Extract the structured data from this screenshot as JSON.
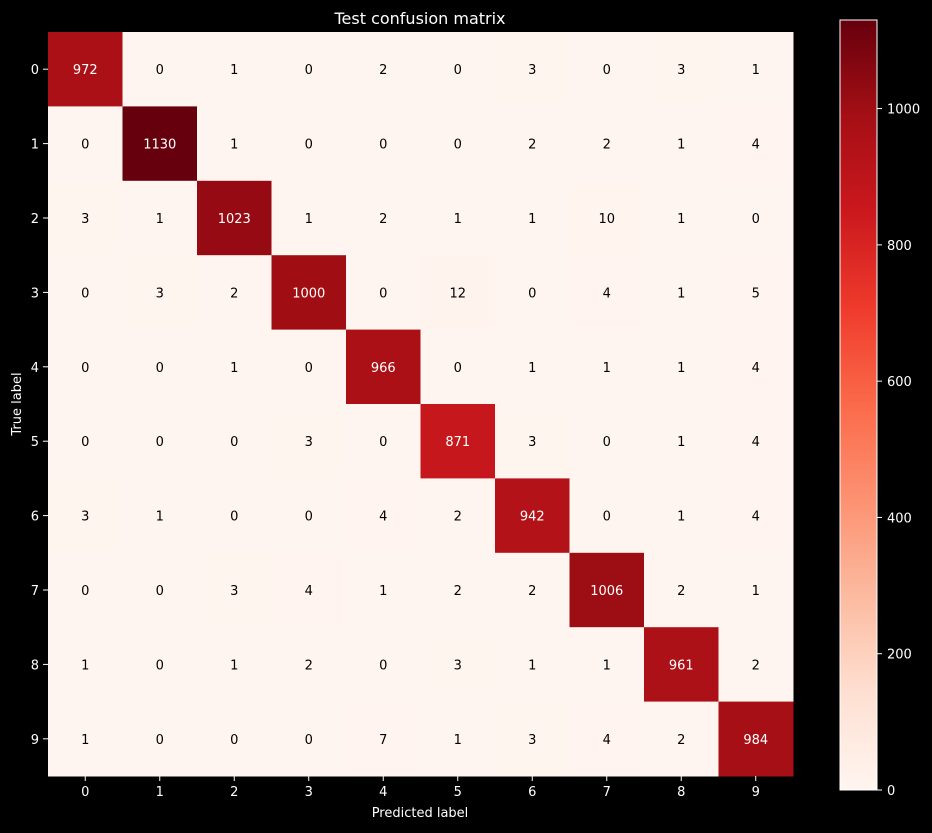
{
  "chart_data": {
    "type": "heatmap",
    "title": "Test confusion matrix",
    "xlabel": "Predicted label",
    "ylabel": "True label",
    "x_categories": [
      "0",
      "1",
      "2",
      "3",
      "4",
      "5",
      "6",
      "7",
      "8",
      "9"
    ],
    "y_categories": [
      "0",
      "1",
      "2",
      "3",
      "4",
      "5",
      "6",
      "7",
      "8",
      "9"
    ],
    "values": [
      [
        972,
        0,
        1,
        0,
        2,
        0,
        3,
        0,
        3,
        1
      ],
      [
        0,
        1130,
        1,
        0,
        0,
        0,
        2,
        2,
        1,
        4
      ],
      [
        3,
        1,
        1023,
        1,
        2,
        1,
        1,
        10,
        1,
        0
      ],
      [
        0,
        3,
        2,
        1000,
        0,
        12,
        0,
        4,
        1,
        5
      ],
      [
        0,
        0,
        1,
        0,
        966,
        0,
        1,
        1,
        1,
        4
      ],
      [
        0,
        0,
        0,
        3,
        0,
        871,
        3,
        0,
        1,
        4
      ],
      [
        3,
        1,
        0,
        0,
        4,
        2,
        942,
        0,
        1,
        4
      ],
      [
        0,
        0,
        3,
        4,
        1,
        2,
        2,
        1006,
        2,
        1
      ],
      [
        1,
        0,
        1,
        2,
        0,
        3,
        1,
        1,
        961,
        2
      ],
      [
        1,
        0,
        0,
        0,
        7,
        1,
        3,
        4,
        2,
        984
      ]
    ],
    "colorbar": {
      "min": 0,
      "max": 1130,
      "ticks": [
        0,
        200,
        400,
        600,
        800,
        1000
      ],
      "colormap": "Reds",
      "stops": [
        "#fff5f0",
        "#fee0d2",
        "#fcbba1",
        "#fc9272",
        "#fb6a4a",
        "#ef3b2c",
        "#cb181d",
        "#a50f15",
        "#67000d"
      ]
    },
    "colors": {
      "background": "#000000",
      "text": "#ffffff",
      "dark_text": "#000000"
    },
    "grid": false
  }
}
